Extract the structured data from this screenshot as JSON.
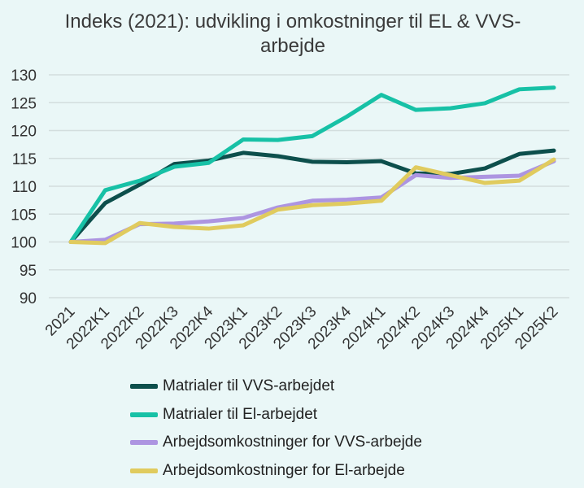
{
  "chart_data": {
    "type": "line",
    "title": "Indeks (2021): udvikling i omkostninger til EL & VVS-arbejde",
    "xlabel": "",
    "ylabel": "",
    "categories": [
      "2021",
      "2022K1",
      "2022K2",
      "2022K3",
      "2022K4",
      "2023K1",
      "2023K2",
      "2023K3",
      "2023K4",
      "2024K1",
      "2024K2",
      "2024K3",
      "2024K4",
      "2025K1",
      "2025K2"
    ],
    "ylim": [
      90,
      130
    ],
    "yticks": [
      90,
      95,
      100,
      105,
      110,
      115,
      120,
      125,
      130
    ],
    "grid": true,
    "legend_placement": "bottom",
    "series": [
      {
        "name": "Matrialer til VVS-arbejdet",
        "color": "#0d4f4c",
        "values": [
          100,
          107,
          110.3,
          114,
          114.6,
          116,
          115.4,
          114.4,
          114.3,
          114.5,
          112.3,
          112.2,
          113.2,
          115.8,
          116.4
        ]
      },
      {
        "name": "Matrialer til El-arbejdet",
        "color": "#17c1a6",
        "values": [
          100,
          109.3,
          111,
          113.5,
          114.2,
          118.4,
          118.3,
          119,
          122.5,
          126.4,
          123.7,
          124,
          124.9,
          127.4,
          127.7
        ]
      },
      {
        "name": "Arbejdsomkostninger for VVS-arbejde",
        "color": "#ad95e1",
        "values": [
          100,
          100.4,
          103.2,
          103.3,
          103.7,
          104.3,
          106.2,
          107.4,
          107.6,
          108,
          112,
          111.5,
          111.7,
          111.9,
          114.5
        ]
      },
      {
        "name": "Arbejdsomkostninger for El-arbejde",
        "color": "#e0cb5e",
        "values": [
          100,
          99.8,
          103.4,
          102.7,
          102.4,
          103,
          105.8,
          106.6,
          106.9,
          107.4,
          113.4,
          112,
          110.6,
          111,
          114.8
        ]
      }
    ]
  }
}
